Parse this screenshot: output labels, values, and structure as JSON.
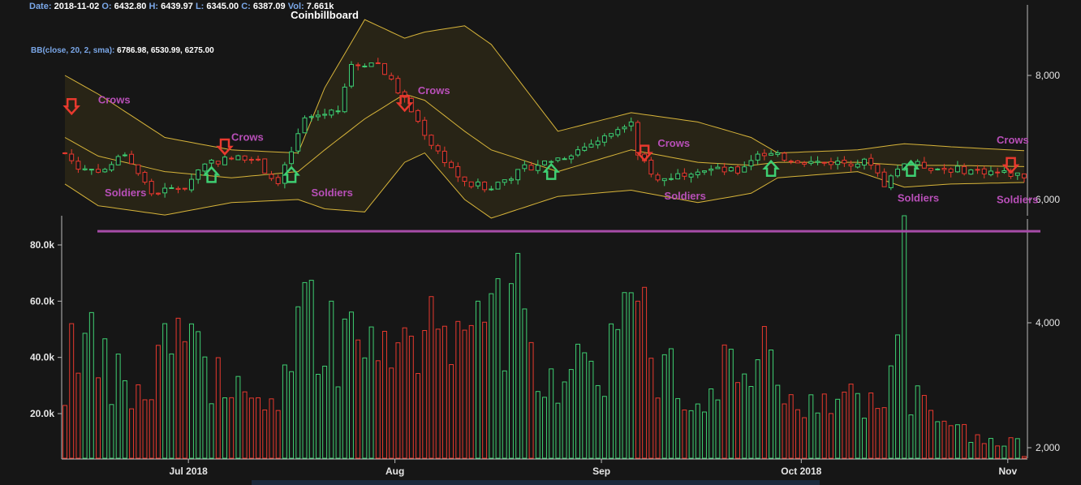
{
  "title": "Coinbillboard",
  "info": {
    "date_label": "Date:",
    "date": "2018-11-02",
    "o_label": "O:",
    "o": "6432.80",
    "h_label": "H:",
    "h": "6439.97",
    "l_label": "L:",
    "l": "6345.00",
    "c_label": "C:",
    "c": "6387.09",
    "vol_label": "Vol:",
    "vol": "7.661k",
    "bb_label": "BB(close, 20, 2, sma):",
    "bb_values": "6786.98, 6530.99, 6275.00"
  },
  "colors": {
    "background": "#161616",
    "up": "#3ecf72",
    "down": "#e8392e",
    "band": "#d7b43a",
    "band_fill": "#2a2616",
    "pattern_label": "#b84fb8",
    "support_line": "#a64ca8",
    "axis_text": "#e6e6e6"
  },
  "chart_data": {
    "type": "candlestick",
    "price_ticks": [
      "8,000",
      "6,000",
      "4,000",
      "2,000"
    ],
    "price_tick_values": [
      8000,
      6000,
      4000,
      2000
    ],
    "volume_ticks": [
      "80.0k",
      "60.0k",
      "40.0k",
      "20.0k"
    ],
    "volume_tick_values": [
      80000,
      60000,
      40000,
      20000
    ],
    "x_ticks": [
      "Jul 2018",
      "Aug",
      "Sep",
      "Oct 2018",
      "Nov"
    ],
    "x_tick_dates": [
      "2018-07-01",
      "2018-08-01",
      "2018-09-01",
      "2018-10-01",
      "2018-11-01"
    ],
    "date_range": [
      "2018-06-11",
      "2018-11-02"
    ],
    "support_level": 5750,
    "close_anchors": [
      {
        "date": "2018-06-11",
        "close": 6750
      },
      {
        "date": "2018-06-13",
        "close": 6500
      },
      {
        "date": "2018-06-17",
        "close": 6480
      },
      {
        "date": "2018-06-20",
        "close": 6750
      },
      {
        "date": "2018-06-24",
        "close": 6100
      },
      {
        "date": "2018-06-29",
        "close": 6200
      },
      {
        "date": "2018-07-02",
        "close": 6600
      },
      {
        "date": "2018-07-09",
        "close": 6700
      },
      {
        "date": "2018-07-13",
        "close": 6250
      },
      {
        "date": "2018-07-17",
        "close": 7300
      },
      {
        "date": "2018-07-22",
        "close": 7450
      },
      {
        "date": "2018-07-24",
        "close": 8200
      },
      {
        "date": "2018-07-28",
        "close": 8200
      },
      {
        "date": "2018-08-01",
        "close": 7600
      },
      {
        "date": "2018-08-05",
        "close": 6900
      },
      {
        "date": "2018-08-10",
        "close": 6250
      },
      {
        "date": "2018-08-14",
        "close": 6200
      },
      {
        "date": "2018-08-19",
        "close": 6500
      },
      {
        "date": "2018-08-25",
        "close": 6700
      },
      {
        "date": "2018-08-31",
        "close": 7000
      },
      {
        "date": "2018-09-04",
        "close": 7300
      },
      {
        "date": "2018-09-05",
        "close": 6750
      },
      {
        "date": "2018-09-08",
        "close": 6300
      },
      {
        "date": "2018-09-14",
        "close": 6500
      },
      {
        "date": "2018-09-20",
        "close": 6450
      },
      {
        "date": "2018-09-23",
        "close": 6750
      },
      {
        "date": "2018-10-01",
        "close": 6600
      },
      {
        "date": "2018-10-10",
        "close": 6600
      },
      {
        "date": "2018-10-12",
        "close": 6250
      },
      {
        "date": "2018-10-15",
        "close": 6600
      },
      {
        "date": "2018-10-20",
        "close": 6500
      },
      {
        "date": "2018-10-28",
        "close": 6450
      },
      {
        "date": "2018-11-02",
        "close": 6387.09
      }
    ],
    "bollinger_anchors": [
      {
        "date": "2018-06-11",
        "upper": 8000,
        "middle": 7000,
        "lower": 6250
      },
      {
        "date": "2018-06-16",
        "upper": 7700,
        "middle": 6700,
        "lower": 5900
      },
      {
        "date": "2018-06-26",
        "upper": 7000,
        "middle": 6450,
        "lower": 5750
      },
      {
        "date": "2018-07-06",
        "upper": 6800,
        "middle": 6350,
        "lower": 5950
      },
      {
        "date": "2018-07-16",
        "upper": 6750,
        "middle": 6450,
        "lower": 6000
      },
      {
        "date": "2018-07-20",
        "upper": 7800,
        "middle": 6800,
        "lower": 5850
      },
      {
        "date": "2018-07-26",
        "upper": 8900,
        "middle": 7300,
        "lower": 5800
      },
      {
        "date": "2018-08-01",
        "upper": 8600,
        "middle": 7700,
        "lower": 6600
      },
      {
        "date": "2018-08-04",
        "upper": 8700,
        "middle": 7600,
        "lower": 6750
      },
      {
        "date": "2018-08-10",
        "upper": 8800,
        "middle": 7100,
        "lower": 6000
      },
      {
        "date": "2018-08-14",
        "upper": 8500,
        "middle": 6800,
        "lower": 5700
      },
      {
        "date": "2018-08-24",
        "upper": 7100,
        "middle": 6450,
        "lower": 6050
      },
      {
        "date": "2018-09-04",
        "upper": 7400,
        "middle": 6800,
        "lower": 6150
      },
      {
        "date": "2018-09-14",
        "upper": 7250,
        "middle": 6600,
        "lower": 5950
      },
      {
        "date": "2018-09-22",
        "upper": 7000,
        "middle": 6550,
        "lower": 6100
      },
      {
        "date": "2018-09-26",
        "upper": 6750,
        "middle": 6600,
        "lower": 6350
      },
      {
        "date": "2018-10-08",
        "upper": 6800,
        "middle": 6600,
        "lower": 6450
      },
      {
        "date": "2018-10-15",
        "upper": 6900,
        "middle": 6550,
        "lower": 6200
      },
      {
        "date": "2018-10-22",
        "upper": 6850,
        "middle": 6550,
        "lower": 6250
      },
      {
        "date": "2018-11-02",
        "upper": 6786.98,
        "middle": 6530.99,
        "lower": 6275
      }
    ],
    "volume_anchors": [
      {
        "date": "2018-06-11",
        "volume": 24000
      },
      {
        "date": "2018-06-13",
        "volume": 52000
      },
      {
        "date": "2018-06-16",
        "volume": 35000
      },
      {
        "date": "2018-06-23",
        "volume": 25000
      },
      {
        "date": "2018-06-27",
        "volume": 48000
      },
      {
        "date": "2018-07-03",
        "volume": 32000
      },
      {
        "date": "2018-07-12",
        "volume": 28000
      },
      {
        "date": "2018-07-15",
        "volume": 35000
      },
      {
        "date": "2018-07-18",
        "volume": 55000
      },
      {
        "date": "2018-07-23",
        "volume": 45000
      },
      {
        "date": "2018-07-28",
        "volume": 42000
      },
      {
        "date": "2018-08-03",
        "volume": 40000
      },
      {
        "date": "2018-08-09",
        "volume": 55000
      },
      {
        "date": "2018-08-13",
        "volume": 62000
      },
      {
        "date": "2018-08-18",
        "volume": 45000
      },
      {
        "date": "2018-08-23",
        "volume": 35000
      },
      {
        "date": "2018-08-31",
        "volume": 40000
      },
      {
        "date": "2018-09-05",
        "volume": 60000
      },
      {
        "date": "2018-09-08",
        "volume": 38000
      },
      {
        "date": "2018-09-15",
        "volume": 33000
      },
      {
        "date": "2018-09-21",
        "volume": 40000
      },
      {
        "date": "2018-09-30",
        "volume": 28000
      },
      {
        "date": "2018-10-06",
        "volume": 20000
      },
      {
        "date": "2018-10-11",
        "volume": 30000
      },
      {
        "date": "2018-10-16",
        "volume": 25000
      },
      {
        "date": "2018-10-21",
        "volume": 15000
      },
      {
        "date": "2018-10-27",
        "volume": 10000
      },
      {
        "date": "2018-11-02",
        "volume": 7661
      }
    ],
    "volume_spikes": [
      {
        "date": "2018-06-12",
        "volume": 52000
      },
      {
        "date": "2018-06-26",
        "volume": 52000
      },
      {
        "date": "2018-07-21",
        "volume": 60000
      },
      {
        "date": "2018-08-12",
        "volume": 60000
      },
      {
        "date": "2018-08-15",
        "volume": 68000
      },
      {
        "date": "2018-08-18",
        "volume": 77000
      },
      {
        "date": "2018-09-04",
        "volume": 63000
      },
      {
        "date": "2018-09-05",
        "volume": 60000
      },
      {
        "date": "2018-09-24",
        "volume": 51000
      },
      {
        "date": "2018-10-14",
        "volume": 48000
      },
      {
        "date": "2018-10-15",
        "volume": 95000
      }
    ],
    "patterns": [
      {
        "label": "Crows",
        "type": "bearish",
        "date": "2018-06-12",
        "price": 7500,
        "label_side": "right"
      },
      {
        "label": "Soldiers",
        "type": "bullish",
        "date": "2018-07-03",
        "price": 6400,
        "label_side": "left"
      },
      {
        "label": "Crows",
        "type": "bearish",
        "date": "2018-08-01",
        "price": 7550,
        "label_side": "above"
      },
      {
        "label": "Soldiers",
        "type": "bullish",
        "date": "2018-07-15",
        "price": 6400,
        "label_side": "below"
      },
      {
        "label": "Crows",
        "type": "bearish",
        "date": "2018-07-05",
        "price": 6850,
        "label_side": "none"
      },
      {
        "label": "Soldiers",
        "type": "bullish",
        "date": "2018-08-23",
        "price": 6450,
        "label_side": "none"
      },
      {
        "label": "Crows",
        "type": "bearish",
        "date": "2018-09-06",
        "price": 6750,
        "label_side": "right"
      },
      {
        "label": "Soldiers",
        "type": "bullish",
        "date": "2018-09-25",
        "price": 6500,
        "label_side": "none"
      },
      {
        "label": "Soldiers",
        "type": "bullish",
        "date": "2018-10-16",
        "price": 6500,
        "label_side": "none"
      },
      {
        "label": "Crows",
        "type": "bearish",
        "date": "2018-10-31",
        "price": 6550,
        "label_side": "none"
      }
    ],
    "pattern_labels": [
      {
        "text": "Crows",
        "date": "2018-06-15",
        "price": 7550
      },
      {
        "text": "Crows",
        "date": "2018-07-05",
        "price": 6950
      },
      {
        "text": "Crows",
        "date": "2018-08-02",
        "price": 7700
      },
      {
        "text": "Crows",
        "date": "2018-09-07",
        "price": 6850
      },
      {
        "text": "Crows",
        "date": "2018-11-02",
        "price": 6900
      },
      {
        "text": "Soldiers",
        "date": "2018-06-16",
        "price": 6050
      },
      {
        "text": "Soldiers",
        "date": "2018-07-17",
        "price": 6050
      },
      {
        "text": "Soldiers",
        "date": "2018-09-08",
        "price": 6000
      },
      {
        "text": "Soldiers",
        "date": "2018-10-13",
        "price": 5970
      },
      {
        "text": "Soldiers",
        "date": "2018-11-01",
        "price": 5940
      }
    ],
    "legend": "none",
    "grid": false
  }
}
